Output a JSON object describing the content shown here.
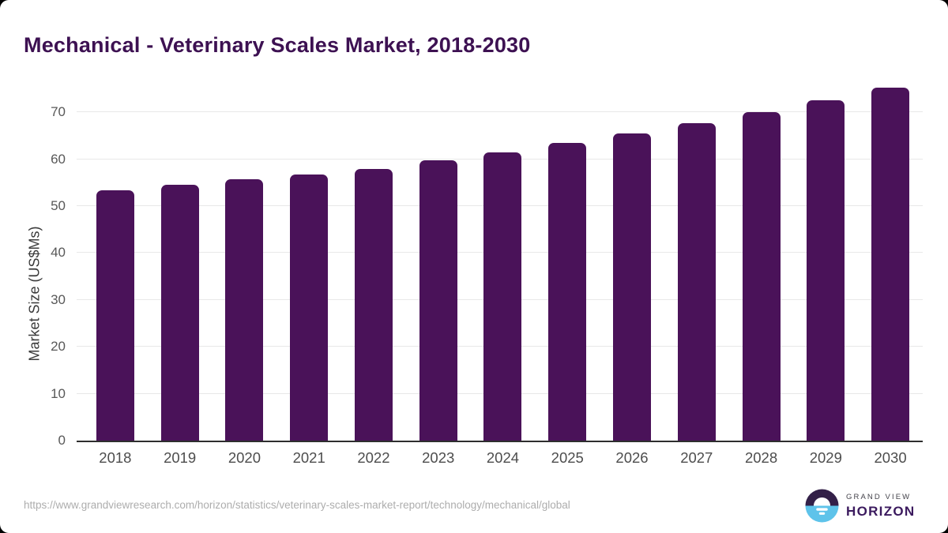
{
  "header": {
    "title": "Mechanical - Veterinary Scales Market, 2018-2030",
    "title_color": "#3d1152"
  },
  "chart_data": {
    "type": "bar",
    "title": "Mechanical - Veterinary Scales Market, 2018-2030",
    "categories": [
      "2018",
      "2019",
      "2020",
      "2021",
      "2022",
      "2023",
      "2024",
      "2025",
      "2026",
      "2027",
      "2028",
      "2029",
      "2030"
    ],
    "values": [
      53.3,
      54.6,
      55.8,
      56.8,
      57.9,
      59.7,
      61.5,
      63.4,
      65.5,
      67.7,
      70.1,
      72.6,
      75.2
    ],
    "xlabel": "",
    "ylabel": "Market Size (US$Ms)",
    "ylim": [
      0,
      77.1
    ],
    "yticks": [
      0,
      10,
      20,
      30,
      40,
      50,
      60,
      70
    ],
    "bar_color": "#4a1259",
    "grid": "horizontal",
    "gridline_color": "#e8e8e8",
    "legend": "none"
  },
  "footer": {
    "source_url": "https://www.grandviewresearch.com/horizon/statistics/veterinary-scales-market-report/technology/mechanical/global",
    "logo": {
      "brand_top": "GRAND VIEW",
      "brand_bottom": "HORIZON",
      "circle_top_color": "#332048",
      "circle_bottom_color": "#5ec3ea"
    }
  }
}
